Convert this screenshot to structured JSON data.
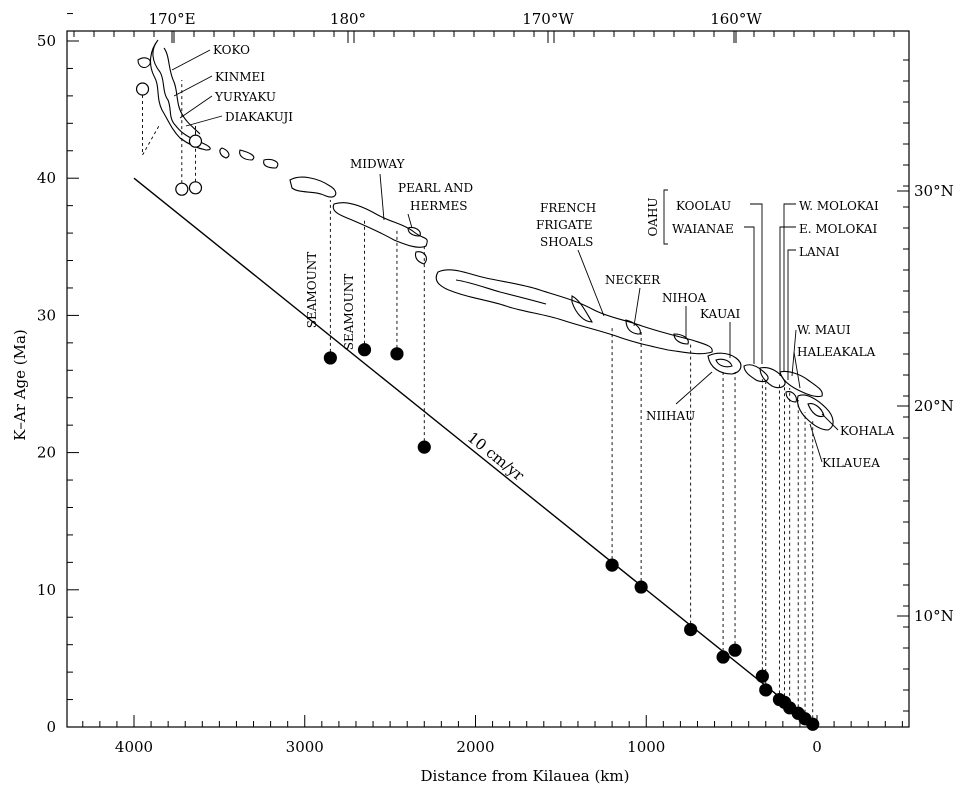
{
  "chart_data": {
    "type": "scatter",
    "title": "",
    "xlabel": "Distance from Kilauea (km)",
    "ylabel": "K–Ar Age (Ma)",
    "xlim": [
      4300,
      -600
    ],
    "ylim": [
      0,
      58
    ],
    "x_ticks": [
      "4000",
      "3000",
      "2000",
      "1000",
      "0"
    ],
    "y_ticks": [
      "0",
      "10",
      "20",
      "30",
      "40",
      "50"
    ],
    "top_ticks": [
      "170°E",
      "180°",
      "170°W",
      "160°W"
    ],
    "right_ticks": [
      "30°N",
      "20°N",
      "10°N"
    ],
    "fit_line": {
      "label": "10 cm/yr",
      "x": [
        4000,
        0
      ],
      "y": [
        40,
        0
      ]
    },
    "series": [
      {
        "marker": "filled",
        "points": [
          {
            "x": 2850,
            "y": 26.9
          },
          {
            "x": 2650,
            "y": 27.5
          },
          {
            "x": 2460,
            "y": 27.2
          },
          {
            "x": 2300,
            "y": 20.4
          },
          {
            "x": 1200,
            "y": 11.8
          },
          {
            "x": 1030,
            "y": 10.2
          },
          {
            "x": 740,
            "y": 7.1
          },
          {
            "x": 550,
            "y": 5.1
          },
          {
            "x": 480,
            "y": 5.6
          },
          {
            "x": 320,
            "y": 3.7
          },
          {
            "x": 300,
            "y": 2.7
          },
          {
            "x": 220,
            "y": 2.0
          },
          {
            "x": 190,
            "y": 1.8
          },
          {
            "x": 160,
            "y": 1.4
          },
          {
            "x": 110,
            "y": 1.0
          },
          {
            "x": 70,
            "y": 0.6
          },
          {
            "x": 25,
            "y": 0.2
          }
        ]
      },
      {
        "marker": "open",
        "points": [
          {
            "x": 3950,
            "y": 46.5
          },
          {
            "x": 3720,
            "y": 39.2
          },
          {
            "x": 3640,
            "y": 42.7
          },
          {
            "x": 3640,
            "y": 39.3
          }
        ]
      }
    ],
    "annotations": {
      "koko": "KOKO",
      "kinmei": "KINMEI",
      "yuryaku": "YURYAKU",
      "diakakuji": "DIAKAKUJI",
      "midway": "MIDWAY",
      "pearl1": "PEARL AND",
      "pearl2": "HERMES",
      "french1": "FRENCH",
      "french2": "FRIGATE",
      "french3": "SHOALS",
      "necker": "NECKER",
      "nihoa": "NIHOA",
      "kauai": "KAUAI",
      "niihau": "NIIHAU",
      "oahu": "OAHU",
      "koolau": "KOOLAU",
      "waianae": "WAIANAE",
      "wmolokai": "W. MOLOKAI",
      "emolokai": "E. MOLOKAI",
      "lanai": "LANAI",
      "wmaui": "W. MAUI",
      "haleakala": "HALEAKALA",
      "kohala": "KOHALA",
      "kilauea": "KILAUEA",
      "seamount1": "SEAMOUNT",
      "seamount2": "SEAMOUNT"
    }
  }
}
